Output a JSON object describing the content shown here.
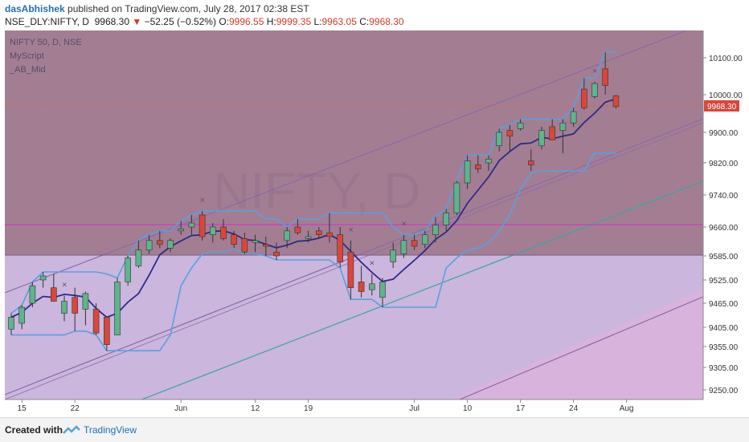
{
  "header": {
    "author": "dasAbhishek",
    "published": " published on TradingView.com, July 28, 2017 02:38 EST",
    "symbol": "NSE_DLY:NIFTY, D",
    "last": "9968.30",
    "change": "−52.25 (−0.52%)",
    "o_label": "O:",
    "o": "9996.55",
    "h_label": "H:",
    "h": "9999.35",
    "l_label": "L:",
    "l": "9963.05",
    "c_label": "C:",
    "c": "9968.30"
  },
  "legend": {
    "line1": "NIFTY 50, D, NSE",
    "line2": "MyScript",
    "line3": "_AB_Mid"
  },
  "watermark": "NIFTY, D",
  "price_badge": "9968.30",
  "footer": {
    "created_with": "Created with",
    "brand": "TradingView"
  },
  "colors": {
    "up": "#5fb38d",
    "down": "#d9473a",
    "mid_line": "#2e2a86",
    "band": "#5aa0e0",
    "channel_line": "#8b6aa8",
    "regression": "#3aa6a0",
    "hline": "#d23ac0",
    "price_line": "#e06040"
  },
  "chart_data": {
    "type": "candlestick",
    "y_axis": {
      "ticks": [
        10100,
        10000,
        9900,
        9820,
        9740,
        9660,
        9585,
        9525,
        9465,
        9405,
        9355,
        9305,
        9250
      ]
    },
    "x_axis": {
      "tick_labels": [
        "15",
        "22",
        "Jun",
        "12",
        "19",
        "Jul",
        "10",
        "17",
        "24",
        "Aug"
      ]
    },
    "candles": [
      {
        "o": 9400,
        "h": 9440,
        "l": 9385,
        "c": 9430
      },
      {
        "o": 9415,
        "h": 9460,
        "l": 9400,
        "c": 9455
      },
      {
        "o": 9465,
        "h": 9520,
        "l": 9455,
        "c": 9510
      },
      {
        "o": 9525,
        "h": 9545,
        "l": 9505,
        "c": 9535
      },
      {
        "o": 9505,
        "h": 9540,
        "l": 9470,
        "c": 9470
      },
      {
        "o": 9440,
        "h": 9485,
        "l": 9420,
        "c": 9470
      },
      {
        "o": 9480,
        "h": 9505,
        "l": 9395,
        "c": 9440
      },
      {
        "o": 9450,
        "h": 9495,
        "l": 9410,
        "c": 9490
      },
      {
        "o": 9450,
        "h": 9465,
        "l": 9385,
        "c": 9390
      },
      {
        "o": 9430,
        "h": 9430,
        "l": 9345,
        "c": 9360
      },
      {
        "o": 9385,
        "h": 9530,
        "l": 9385,
        "c": 9520
      },
      {
        "o": 9520,
        "h": 9585,
        "l": 9510,
        "c": 9580
      },
      {
        "o": 9560,
        "h": 9625,
        "l": 9555,
        "c": 9600
      },
      {
        "o": 9600,
        "h": 9640,
        "l": 9590,
        "c": 9625
      },
      {
        "o": 9625,
        "h": 9650,
        "l": 9605,
        "c": 9615
      },
      {
        "o": 9605,
        "h": 9630,
        "l": 9595,
        "c": 9625
      },
      {
        "o": 9650,
        "h": 9675,
        "l": 9640,
        "c": 9655
      },
      {
        "o": 9660,
        "h": 9690,
        "l": 9640,
        "c": 9670
      },
      {
        "o": 9690,
        "h": 9700,
        "l": 9625,
        "c": 9635
      },
      {
        "o": 9640,
        "h": 9670,
        "l": 9620,
        "c": 9660
      },
      {
        "o": 9660,
        "h": 9680,
        "l": 9625,
        "c": 9630
      },
      {
        "o": 9640,
        "h": 9650,
        "l": 9605,
        "c": 9615
      },
      {
        "o": 9630,
        "h": 9645,
        "l": 9590,
        "c": 9595
      },
      {
        "o": 9620,
        "h": 9640,
        "l": 9595,
        "c": 9625
      },
      {
        "o": 9615,
        "h": 9635,
        "l": 9585,
        "c": 9610
      },
      {
        "o": 9595,
        "h": 9620,
        "l": 9575,
        "c": 9585
      },
      {
        "o": 9625,
        "h": 9660,
        "l": 9605,
        "c": 9650
      },
      {
        "o": 9660,
        "h": 9680,
        "l": 9640,
        "c": 9645
      },
      {
        "o": 9630,
        "h": 9650,
        "l": 9620,
        "c": 9635
      },
      {
        "o": 9650,
        "h": 9660,
        "l": 9630,
        "c": 9640
      },
      {
        "o": 9645,
        "h": 9695,
        "l": 9620,
        "c": 9635
      },
      {
        "o": 9640,
        "h": 9660,
        "l": 9555,
        "c": 9570
      },
      {
        "o": 9595,
        "h": 9625,
        "l": 9475,
        "c": 9505
      },
      {
        "o": 9520,
        "h": 9560,
        "l": 9480,
        "c": 9495
      },
      {
        "o": 9500,
        "h": 9540,
        "l": 9485,
        "c": 9515
      },
      {
        "o": 9480,
        "h": 9530,
        "l": 9455,
        "c": 9520
      },
      {
        "o": 9570,
        "h": 9620,
        "l": 9555,
        "c": 9600
      },
      {
        "o": 9590,
        "h": 9640,
        "l": 9580,
        "c": 9625
      },
      {
        "o": 9625,
        "h": 9640,
        "l": 9600,
        "c": 9610
      },
      {
        "o": 9615,
        "h": 9650,
        "l": 9605,
        "c": 9640
      },
      {
        "o": 9640,
        "h": 9685,
        "l": 9620,
        "c": 9665
      },
      {
        "o": 9665,
        "h": 9705,
        "l": 9650,
        "c": 9695
      },
      {
        "o": 9695,
        "h": 9775,
        "l": 9690,
        "c": 9770
      },
      {
        "o": 9770,
        "h": 9840,
        "l": 9755,
        "c": 9825
      },
      {
        "o": 9815,
        "h": 9840,
        "l": 9795,
        "c": 9805
      },
      {
        "o": 9820,
        "h": 9840,
        "l": 9800,
        "c": 9830
      },
      {
        "o": 9865,
        "h": 9910,
        "l": 9850,
        "c": 9900
      },
      {
        "o": 9905,
        "h": 9920,
        "l": 9850,
        "c": 9890
      },
      {
        "o": 9910,
        "h": 9935,
        "l": 9905,
        "c": 9925
      },
      {
        "o": 9825,
        "h": 9855,
        "l": 9800,
        "c": 9815
      },
      {
        "o": 9865,
        "h": 9915,
        "l": 9855,
        "c": 9905
      },
      {
        "o": 9915,
        "h": 9935,
        "l": 9885,
        "c": 9880
      },
      {
        "o": 9905,
        "h": 9935,
        "l": 9845,
        "c": 9925
      },
      {
        "o": 9925,
        "h": 9965,
        "l": 9915,
        "c": 9955
      },
      {
        "o": 10015,
        "h": 10045,
        "l": 9960,
        "c": 9965
      },
      {
        "o": 9995,
        "h": 10035,
        "l": 9990,
        "c": 10030
      },
      {
        "o": 10070,
        "h": 10115,
        "l": 10000,
        "c": 10025
      },
      {
        "o": 9996.55,
        "h": 9999.35,
        "l": 9963.05,
        "c": 9968.3
      }
    ]
  }
}
